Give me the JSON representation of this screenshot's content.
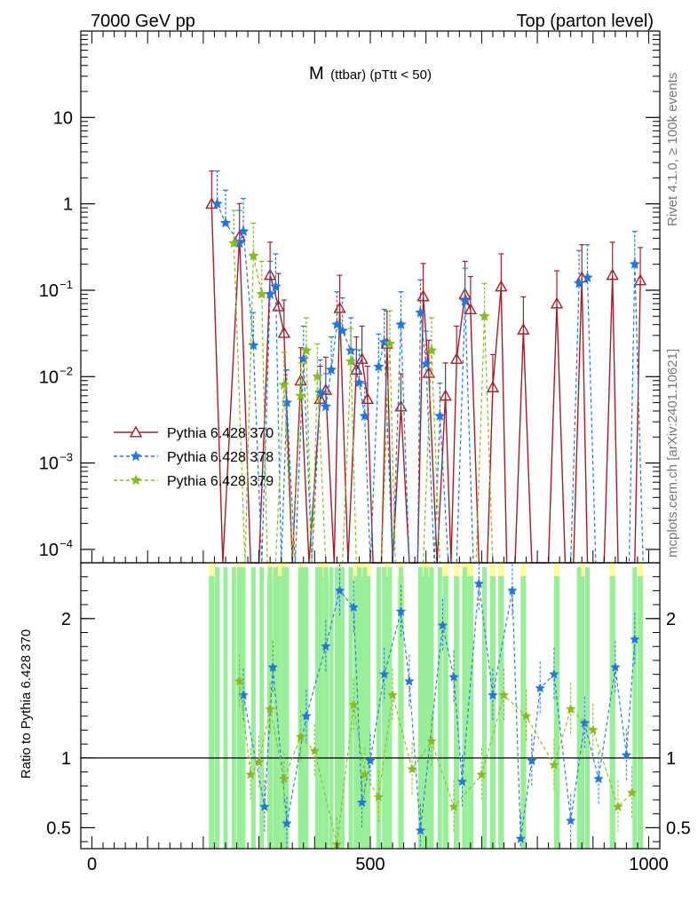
{
  "chart_data": {
    "type": "line",
    "title": "M (ttbar) (pTtt < 50)",
    "title_main": "M",
    "title_sub": "(ttbar) (pTtt < 50)",
    "header_left": "7000 GeV pp",
    "header_right": "Top (parton level)",
    "side_label_rivet": "Rivet 4.1.0, ≥ 100k events",
    "side_label_mcplots": "mcplots.cern.ch [arXiv:2401.10621]",
    "ratio_ylabel": "Ratio to Pythia 6.428 370",
    "xlim": [
      -20,
      1020
    ],
    "ylim_main": [
      7e-05,
      100
    ],
    "ylim_ratio": [
      0.35,
      2.4
    ],
    "x_ticks": [
      0,
      500,
      1000
    ],
    "x_tick_labels": [
      "0",
      "500",
      "1000"
    ],
    "y_ticks_main": [
      0.0001,
      0.001,
      0.01,
      0.1,
      1,
      10
    ],
    "y_tick_labels_main": [
      {
        "base": "10",
        "exp": "−4"
      },
      {
        "base": "10",
        "exp": "−3"
      },
      {
        "base": "10",
        "exp": "−2"
      },
      {
        "base": "10",
        "exp": "−1"
      },
      {
        "base": "1",
        "exp": ""
      },
      {
        "base": "10",
        "exp": ""
      }
    ],
    "y_ticks_ratio": [
      0.5,
      1,
      2
    ],
    "y_tick_labels_ratio": [
      "0.5",
      "1",
      "2"
    ],
    "legend_position": "lower-left",
    "series": [
      {
        "name": "Pythia 6.428 370",
        "color": "#a0202a",
        "marker": "triangle",
        "dash": "solid",
        "points": [
          [
            215,
            1.0
          ],
          [
            235,
            5e-05
          ],
          [
            265,
            0.42
          ],
          [
            285,
            5e-05
          ],
          [
            300,
            5e-05
          ],
          [
            320,
            0.15
          ],
          [
            335,
            0.065
          ],
          [
            345,
            0.032
          ],
          [
            360,
            5e-05
          ],
          [
            375,
            0.009
          ],
          [
            390,
            5e-05
          ],
          [
            410,
            0.0055
          ],
          [
            420,
            0.007
          ],
          [
            435,
            5e-05
          ],
          [
            445,
            0.062
          ],
          [
            460,
            5e-05
          ],
          [
            475,
            0.012
          ],
          [
            485,
            0.016
          ],
          [
            495,
            0.0055
          ],
          [
            505,
            5e-05
          ],
          [
            520,
            5e-05
          ],
          [
            530,
            0.024
          ],
          [
            540,
            5e-05
          ],
          [
            555,
            0.0045
          ],
          [
            570,
            5e-05
          ],
          [
            585,
            5e-05
          ],
          [
            595,
            0.085
          ],
          [
            605,
            0.011
          ],
          [
            620,
            5e-05
          ],
          [
            635,
            0.006
          ],
          [
            645,
            5e-05
          ],
          [
            655,
            0.016
          ],
          [
            670,
            0.09
          ],
          [
            680,
            0.06
          ],
          [
            695,
            5e-05
          ],
          [
            710,
            5e-05
          ],
          [
            720,
            0.0075
          ],
          [
            735,
            0.11
          ],
          [
            745,
            5e-05
          ],
          [
            760,
            5e-05
          ],
          [
            775,
            0.035
          ],
          [
            790,
            5e-05
          ],
          [
            805,
            5e-05
          ],
          [
            820,
            5e-05
          ],
          [
            835,
            0.07
          ],
          [
            850,
            5e-05
          ],
          [
            865,
            5e-05
          ],
          [
            880,
            0.14
          ],
          [
            890,
            5e-05
          ],
          [
            905,
            5e-05
          ],
          [
            920,
            5e-05
          ],
          [
            935,
            0.15
          ],
          [
            945,
            5e-05
          ],
          [
            960,
            5e-05
          ],
          [
            975,
            5e-05
          ],
          [
            985,
            0.13
          ]
        ]
      },
      {
        "name": "Pythia 6.428 378",
        "color": "#2277dd",
        "marker": "star",
        "dash": "dashed",
        "points": [
          [
            225,
            1.0
          ],
          [
            240,
            0.6
          ],
          [
            265,
            0.35
          ],
          [
            272,
            0.48
          ],
          [
            290,
            0.023
          ],
          [
            305,
            5e-05
          ],
          [
            320,
            0.09
          ],
          [
            330,
            0.11
          ],
          [
            340,
            5e-05
          ],
          [
            350,
            0.005
          ],
          [
            365,
            5e-05
          ],
          [
            380,
            0.016
          ],
          [
            395,
            5e-05
          ],
          [
            410,
            0.0065
          ],
          [
            420,
            0.0045
          ],
          [
            430,
            0.012
          ],
          [
            440,
            0.04
          ],
          [
            450,
            0.034
          ],
          [
            465,
            0.02
          ],
          [
            480,
            0.0085
          ],
          [
            490,
            0.0035
          ],
          [
            500,
            5e-05
          ],
          [
            515,
            0.013
          ],
          [
            525,
            0.025
          ],
          [
            540,
            5e-05
          ],
          [
            555,
            0.04
          ],
          [
            570,
            5e-05
          ],
          [
            585,
            5e-05
          ],
          [
            590,
            0.055
          ],
          [
            600,
            0.014
          ],
          [
            615,
            5e-05
          ],
          [
            625,
            0.0035
          ],
          [
            640,
            5e-05
          ],
          [
            655,
            5e-05
          ],
          [
            670,
            0.075
          ],
          [
            685,
            5e-05
          ],
          [
            700,
            5e-05
          ],
          [
            710,
            5e-05
          ],
          [
            725,
            5e-05
          ],
          [
            740,
            5e-05
          ],
          [
            755,
            5e-05
          ],
          [
            770,
            5e-05
          ],
          [
            790,
            5e-05
          ],
          [
            810,
            5e-05
          ],
          [
            830,
            5e-05
          ],
          [
            845,
            5e-05
          ],
          [
            860,
            5e-05
          ],
          [
            875,
            0.12
          ],
          [
            890,
            0.14
          ],
          [
            905,
            5e-05
          ],
          [
            920,
            5e-05
          ],
          [
            935,
            5e-05
          ],
          [
            950,
            5e-05
          ],
          [
            965,
            5e-05
          ],
          [
            975,
            0.2
          ],
          [
            990,
            5e-05
          ]
        ]
      },
      {
        "name": "Pythia 6.428 379",
        "color": "#88bb22",
        "marker": "star",
        "dash": "dashed",
        "points": [
          [
            255,
            0.35
          ],
          [
            275,
            5e-05
          ],
          [
            290,
            0.25
          ],
          [
            305,
            0.09
          ],
          [
            315,
            5e-05
          ],
          [
            330,
            5e-05
          ],
          [
            345,
            0.008
          ],
          [
            360,
            5e-05
          ],
          [
            375,
            0.006
          ],
          [
            385,
            0.02
          ],
          [
            395,
            5e-05
          ],
          [
            405,
            0.01
          ],
          [
            420,
            5e-05
          ],
          [
            435,
            5e-05
          ],
          [
            450,
            5e-05
          ],
          [
            465,
            0.015
          ],
          [
            475,
            5e-05
          ],
          [
            490,
            5e-05
          ],
          [
            505,
            5e-05
          ],
          [
            520,
            5e-05
          ],
          [
            535,
            0.024
          ],
          [
            545,
            5e-05
          ],
          [
            560,
            5e-05
          ],
          [
            580,
            5e-05
          ],
          [
            595,
            5e-05
          ],
          [
            610,
            0.02
          ],
          [
            625,
            5e-05
          ],
          [
            640,
            5e-05
          ],
          [
            660,
            5e-05
          ],
          [
            675,
            5e-05
          ],
          [
            690,
            5e-05
          ],
          [
            705,
            0.05
          ],
          [
            720,
            5e-05
          ],
          [
            740,
            5e-05
          ],
          [
            760,
            5e-05
          ],
          [
            780,
            5e-05
          ],
          [
            800,
            5e-05
          ],
          [
            815,
            5e-05
          ],
          [
            830,
            5e-05
          ],
          [
            850,
            5e-05
          ],
          [
            865,
            5e-05
          ],
          [
            880,
            5e-05
          ],
          [
            895,
            5e-05
          ],
          [
            910,
            5e-05
          ],
          [
            925,
            5e-05
          ],
          [
            940,
            5e-05
          ],
          [
            955,
            5e-05
          ],
          [
            970,
            5e-05
          ],
          [
            985,
            5e-05
          ]
        ]
      }
    ],
    "ratio_series": [
      {
        "name": "Pythia 6.428 378 / 370",
        "color": "#2277dd",
        "points": [
          [
            272,
            1.45
          ],
          [
            310,
            0.65
          ],
          [
            325,
            1.65
          ],
          [
            350,
            0.53
          ],
          [
            385,
            1.3
          ],
          [
            420,
            1.8
          ],
          [
            445,
            2.2
          ],
          [
            470,
            2.08
          ],
          [
            485,
            0.68
          ],
          [
            500,
            0.98
          ],
          [
            525,
            1.6
          ],
          [
            555,
            2.05
          ],
          [
            570,
            1.55
          ],
          [
            590,
            0.48
          ],
          [
            630,
            1.95
          ],
          [
            650,
            1.58
          ],
          [
            665,
            0.83
          ],
          [
            695,
            2.25
          ],
          [
            720,
            1.45
          ],
          [
            755,
            2.2
          ],
          [
            770,
            0.42
          ],
          [
            790,
            0.98
          ],
          [
            805,
            1.5
          ],
          [
            830,
            1.6
          ],
          [
            860,
            0.55
          ],
          [
            885,
            1.25
          ],
          [
            910,
            0.85
          ],
          [
            940,
            1.65
          ],
          [
            960,
            1.02
          ],
          [
            975,
            1.85
          ]
        ]
      },
      {
        "name": "Pythia 6.428 379 / 370",
        "color": "#88bb22",
        "points": [
          [
            265,
            1.55
          ],
          [
            285,
            0.88
          ],
          [
            300,
            0.97
          ],
          [
            320,
            1.35
          ],
          [
            345,
            0.85
          ],
          [
            375,
            1.15
          ],
          [
            400,
            1.05
          ],
          [
            440,
            0.38
          ],
          [
            470,
            1.38
          ],
          [
            490,
            0.88
          ],
          [
            515,
            0.72
          ],
          [
            540,
            1.45
          ],
          [
            575,
            0.92
          ],
          [
            610,
            1.12
          ],
          [
            650,
            0.65
          ],
          [
            700,
            0.88
          ],
          [
            740,
            1.45
          ],
          [
            780,
            1.3
          ],
          [
            830,
            0.95
          ],
          [
            860,
            1.35
          ],
          [
            900,
            1.2
          ],
          [
            945,
            0.65
          ],
          [
            970,
            0.75
          ]
        ]
      }
    ]
  }
}
